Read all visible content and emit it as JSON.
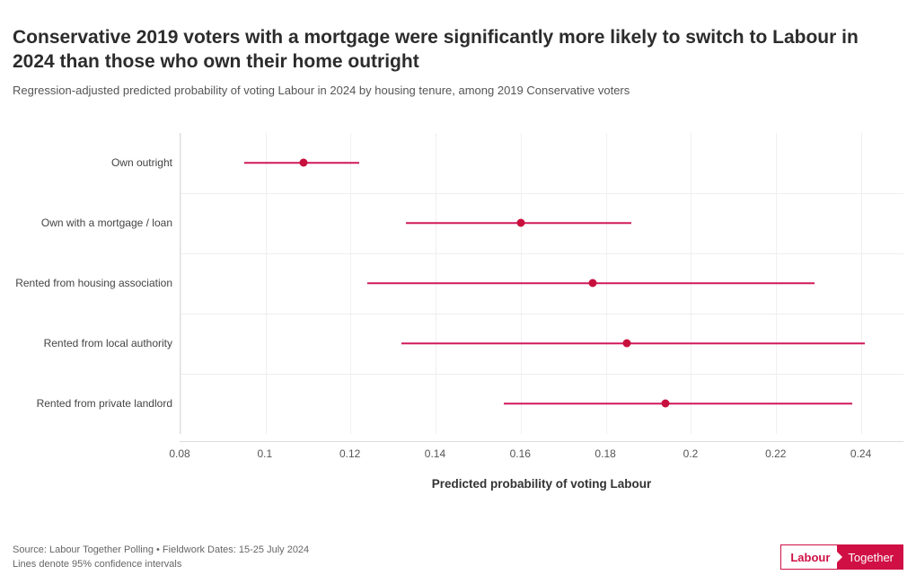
{
  "title": "Conservative 2019 voters with a mortgage were significantly more likely to switch to Labour in 2024 than those who own their home outright",
  "subtitle": "Regression-adjusted predicted probability of voting Labour in 2024 by housing tenure, among 2019 Conservative voters",
  "chart": {
    "type": "dot-whisker",
    "x_min": 0.08,
    "x_max": 0.25,
    "x_ticks": [
      0.08,
      0.1,
      0.12,
      0.14,
      0.16,
      0.18,
      0.2,
      0.22,
      0.24
    ],
    "x_tick_labels": [
      "0.08",
      "0.1",
      "0.12",
      "0.14",
      "0.16",
      "0.18",
      "0.2",
      "0.22",
      "0.24"
    ],
    "x_title": "Predicted probability of voting Labour",
    "grid_color": "#f0f0f0",
    "divider_color": "#eeeeee",
    "point_color": "#c8103e",
    "line_color": "#d0195a",
    "categories": [
      {
        "label": "Own outright",
        "low": 0.095,
        "point": 0.109,
        "high": 0.122
      },
      {
        "label": "Own with a mortgage / loan",
        "low": 0.133,
        "point": 0.16,
        "high": 0.186
      },
      {
        "label": "Rented from housing association",
        "low": 0.124,
        "point": 0.177,
        "high": 0.229
      },
      {
        "label": "Rented from local authority",
        "low": 0.132,
        "point": 0.185,
        "high": 0.241
      },
      {
        "label": "Rented from private landlord",
        "low": 0.156,
        "point": 0.194,
        "high": 0.238
      }
    ]
  },
  "footer": {
    "line1": "Source: Labour Together Polling • Fieldwork Dates: 15-25 July 2024",
    "line2": "Lines denote 95% confidence intervals"
  },
  "logo": {
    "left": "Labour",
    "right": "Together",
    "brand_color": "#d01045"
  }
}
